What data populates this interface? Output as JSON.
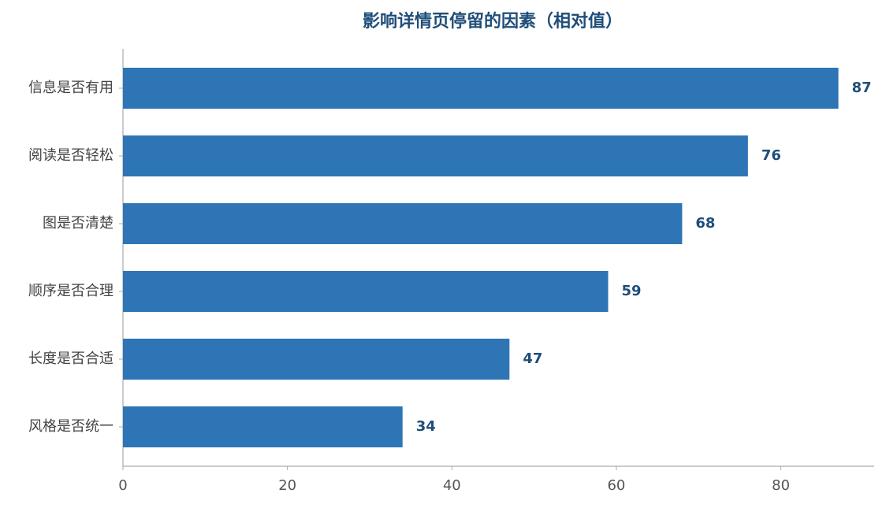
{
  "chart_data": {
    "type": "barh",
    "title": "影响详情页停留的因素（相对值）",
    "categories": [
      "信息是否有用",
      "阅读是否轻松",
      "图是否清楚",
      "顺序是否合理",
      "长度是否合适",
      "风格是否统一"
    ],
    "values": [
      87,
      76,
      68,
      59,
      47,
      34
    ],
    "color": "#2e75b6",
    "xlim": [
      0,
      91.35
    ],
    "xticks": [
      0,
      20,
      40,
      60,
      80
    ],
    "grid": false
  }
}
